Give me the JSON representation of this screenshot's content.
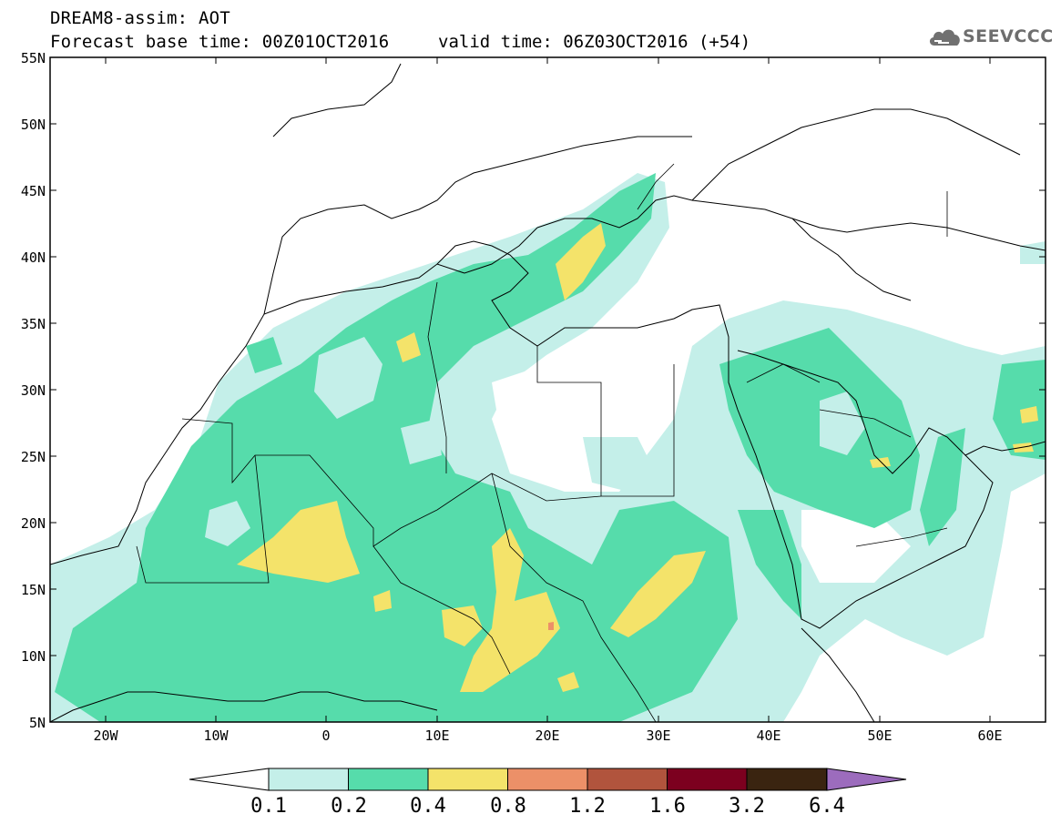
{
  "header": {
    "title": "DREAM8-assim: AOT",
    "base_time": "Forecast base time: 00Z01OCT2016",
    "valid_time": "valid time: 06Z03OCT2016 (+54)",
    "logo_text": "SEEVCCC",
    "logo_icon": "cloud-icon"
  },
  "map": {
    "lat_labels": [
      "55N",
      "50N",
      "45N",
      "40N",
      "35N",
      "30N",
      "25N",
      "20N",
      "15N",
      "10N",
      "5N"
    ],
    "lon_labels": [
      "20W",
      "10W",
      "0",
      "10E",
      "20E",
      "30E",
      "40E",
      "50E",
      "60E"
    ],
    "colors": {
      "c01": "#c4efe9",
      "c02": "#56dcab",
      "c04": "#f4e36a",
      "c08": "#ec9068",
      "c12": "#b1543d",
      "c16": "#7c001f",
      "c32": "#3a2410",
      "c64": "#9c6cbd"
    }
  },
  "colorbar": {
    "labels": [
      "0.1",
      "0.2",
      "0.4",
      "0.8",
      "1.2",
      "1.6",
      "3.2",
      "6.4"
    ],
    "colors": [
      "#ffffff",
      "#c4efe9",
      "#56dcab",
      "#f4e36a",
      "#ec9068",
      "#b1543d",
      "#7c001f",
      "#3a2410",
      "#9c6cbd"
    ]
  }
}
